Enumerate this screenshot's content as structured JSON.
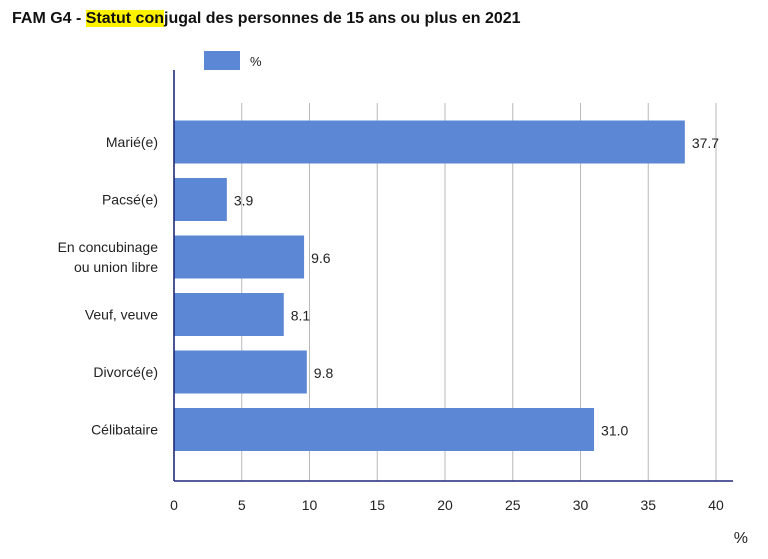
{
  "title": {
    "prefix": "FAM G4 - ",
    "highlight": "Statut con",
    "rest": "jugal des personnes de 15 ans ou plus en 2021"
  },
  "colors": {
    "bar": "#5b87d4",
    "axis": "#1f2a7a",
    "grid": "#b8b8b8",
    "highlight": "#fff200"
  },
  "chart_data": {
    "type": "bar",
    "orientation": "horizontal",
    "title": "FAM G4 - Statut conjugal des personnes de 15 ans ou plus en 2021",
    "categories": [
      [
        "Marié(e)"
      ],
      [
        "Pacsé(e)"
      ],
      [
        "En concubinage",
        "ou union libre"
      ],
      [
        "Veuf, veuve"
      ],
      [
        "Divorcé(e)"
      ],
      [
        "Célibataire"
      ]
    ],
    "series": [
      {
        "name": "%",
        "values": [
          37.7,
          3.9,
          9.6,
          8.1,
          9.8,
          31.0
        ]
      }
    ],
    "value_labels": [
      "37.7",
      "3.9",
      "9.6",
      "8.1",
      "9.8",
      "31.0"
    ],
    "xlim": [
      0,
      41
    ],
    "xticks": [
      0,
      5,
      10,
      15,
      20,
      25,
      30,
      35,
      40
    ],
    "xlabel": "%",
    "grid": true,
    "legend": "top-left"
  }
}
